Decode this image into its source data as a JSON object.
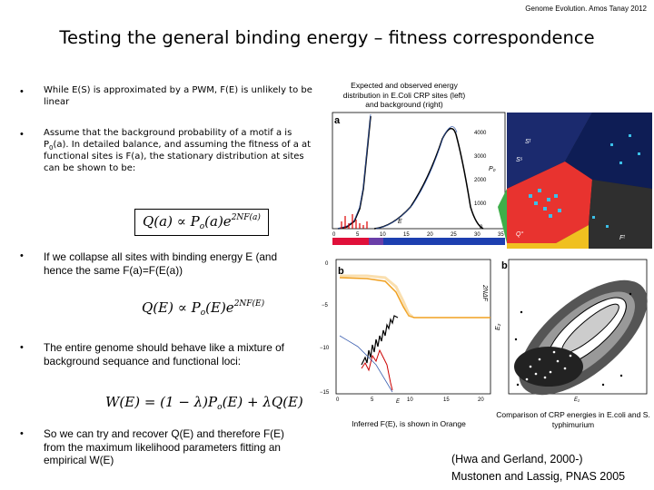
{
  "header": "Genome Evolution. Amos Tanay 2012",
  "title": "Testing the general binding energy – fitness correspondence",
  "bullets": [
    {
      "bullet": "•",
      "text": "While E(S) is approximated by a PWM, F(E) is unlikely to be linear"
    },
    {
      "bullet": "•",
      "text_before_sub": "Assume that the background probability of a motif a is P",
      "sub": "0",
      "text_after_sub": "(a). In detailed balance, and assuming the fitness of a at functional sites is F(a), the stationary distribution at sites can be shown to be:"
    },
    {
      "bullet": "•",
      "text": "If we collapse all sites with binding energy E (and hence the same F(a)=F(E(a))"
    },
    {
      "bullet": "•",
      "text": "The entire genome should behave like a mixture of background sequance and functional loci:"
    },
    {
      "bullet": "•",
      "text": "So we can try and recover Q(E) and therefore F(E) from the maximum likelihood parameters fitting an empirical W(E)"
    }
  ],
  "formulas": {
    "f1": {
      "main": "Q(a) ∝ P",
      "sub": "o",
      "rest": "(a)e",
      "sup": "2NF(a)"
    },
    "f2": {
      "main": "Q(E) ∝ P",
      "sub": "o",
      "rest": "(E)e",
      "sup": "2NF(E)"
    },
    "f3": {
      "main": "W(E) = (1 − λ)P",
      "sub": "o",
      "rest": "(E) + λQ(E)"
    }
  },
  "captions": {
    "top": "Expected and observed energy distribution in E.Coli CRP sites (left) and background (right)",
    "inferred": "Inferred F(E), is shown in Orange",
    "comparison": "Comparison of CRP energies in E.coli and S. typhimurium"
  },
  "references": [
    "(Hwa and Gerland, 2000-)",
    "Mustonen and Lassig, PNAS 2005"
  ],
  "figure": {
    "panel_a": {
      "label": "a",
      "y_ticks": [
        "4000",
        "3000",
        "2000",
        "1000",
        "0"
      ],
      "x_ticks": [
        "0",
        "5",
        "10",
        "15",
        "20",
        "25",
        "30",
        "35"
      ],
      "y_label": "P₀",
      "x_label": "E",
      "curve_label": "E",
      "map_labels": [
        "Sᵗ",
        "Q°",
        "Fᵗ",
        "Sˢ"
      ]
    },
    "panel_b": {
      "label": "b",
      "y_ticks": [
        "0",
        "−5",
        "−10",
        "−15"
      ],
      "x_ticks": [
        "0",
        "5",
        "10",
        "15",
        "20"
      ],
      "y_label": "2NΔF",
      "x_label": "E"
    },
    "panel_c": {
      "label": "b",
      "y_label": "E₂",
      "x_label": "E₁"
    }
  }
}
